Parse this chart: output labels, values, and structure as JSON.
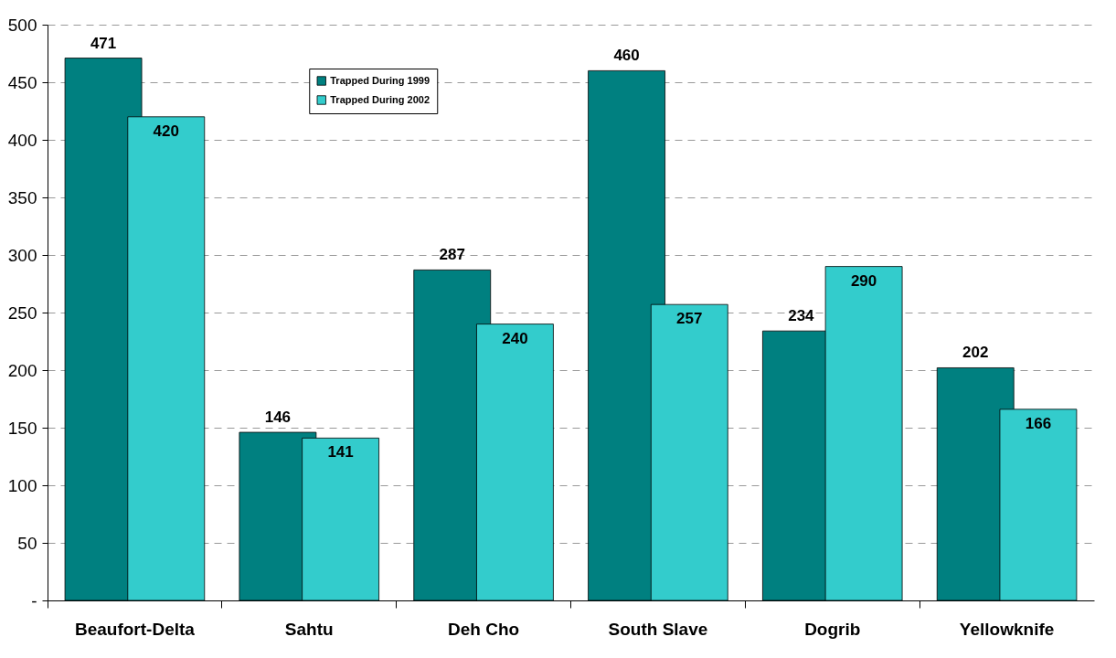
{
  "chart_data": {
    "type": "bar",
    "categories": [
      "Beaufort-Delta",
      "Sahtu",
      "Deh Cho",
      "South Slave",
      "Dogrib",
      "Yellowknife"
    ],
    "series": [
      {
        "name": "Trapped During 1999",
        "color": "#008080",
        "values": [
          471,
          146,
          287,
          460,
          234,
          202
        ]
      },
      {
        "name": "Trapped During 2002",
        "color": "#33cccc",
        "values": [
          420,
          141,
          240,
          257,
          290,
          166
        ]
      }
    ],
    "ylim": [
      0,
      500
    ],
    "yticks": [
      {
        "value": 0,
        "label": "-"
      },
      50,
      100,
      150,
      200,
      250,
      300,
      350,
      400,
      450,
      500
    ],
    "grid": "y",
    "legend": "top",
    "data_labels": true
  }
}
